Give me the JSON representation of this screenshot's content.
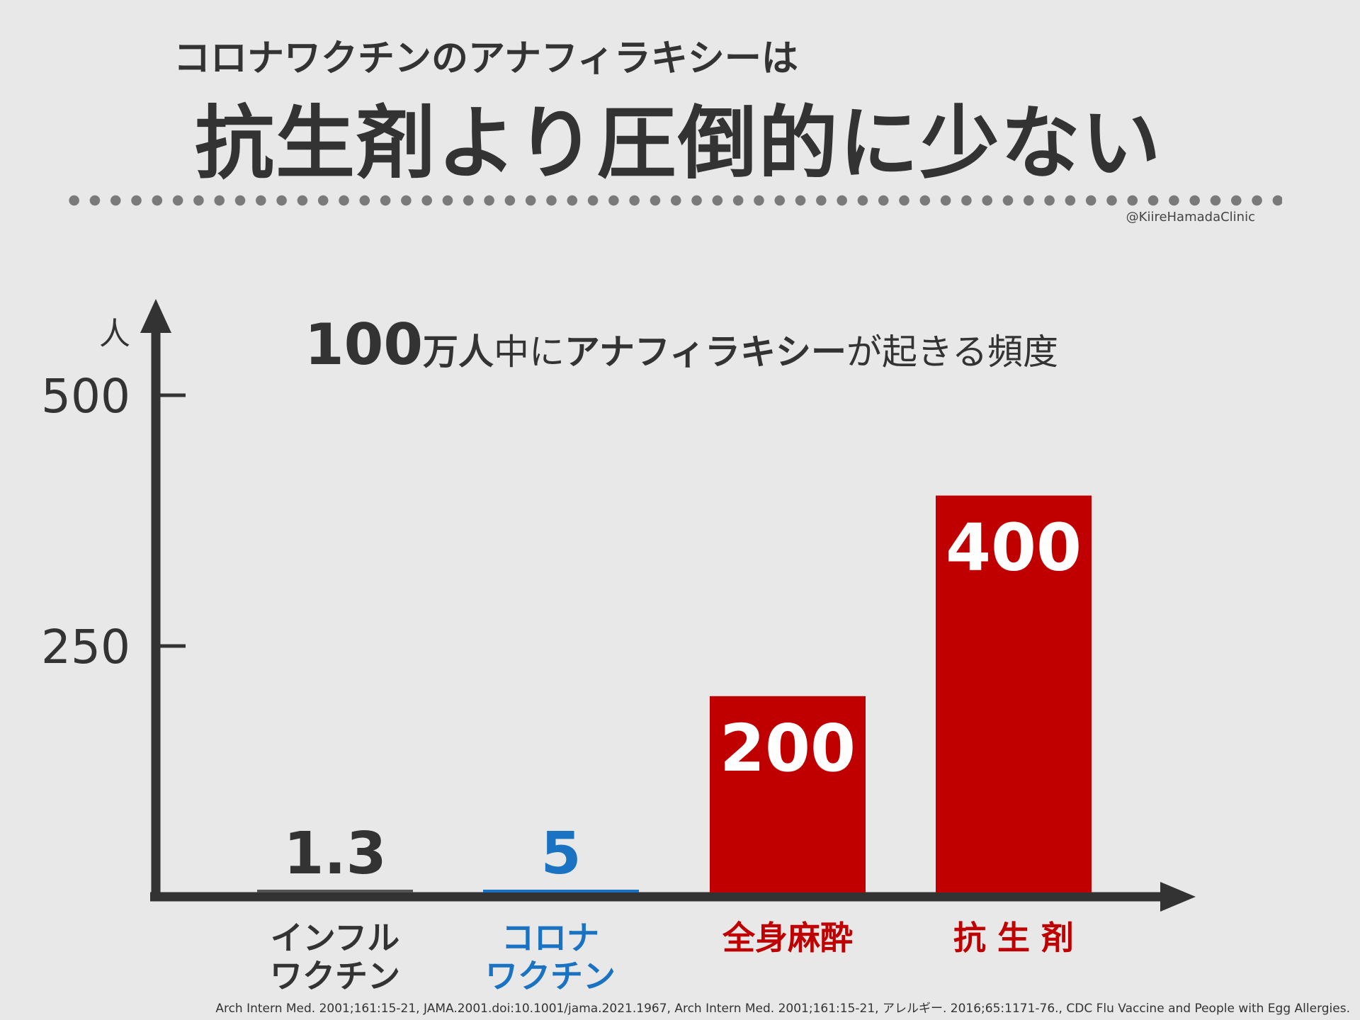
{
  "header": {
    "subtitle": "コロナワクチンのアナフィラキシーは",
    "title": "抗生剤より圧倒的に少ない",
    "handle": "@KiireHamadaClinic"
  },
  "chart_heading": {
    "number": "100",
    "part1": "万人",
    "part2": "中に",
    "part3": "アナフィラキシー",
    "part4": "が起きる頻度"
  },
  "chart_data": {
    "type": "bar",
    "ylabel": "人",
    "ylim": [
      0,
      500
    ],
    "yticks": [
      "500",
      "250"
    ],
    "y_tick_values": [
      500,
      250
    ],
    "categories": [
      "インフル\nワクチン",
      "コロナ\nワクチン",
      "全身麻酔",
      "抗 生 剤"
    ],
    "values": [
      1.3,
      5,
      200,
      400
    ],
    "value_labels": [
      "1.3",
      "5",
      "200",
      "400"
    ],
    "colors": [
      "#555555",
      "#1a73c2",
      "#c00000",
      "#c00000"
    ],
    "value_label_colors": [
      "#333333",
      "#1a73c2",
      "#ffffff",
      "#ffffff"
    ],
    "category_colors": [
      "#333333",
      "#1a73c2",
      "#c00000",
      "#c00000"
    ],
    "axis_color": "#333333"
  },
  "sources": "Arch Intern Med. 2001;161:15-21, JAMA.2001.doi:10.1001/jama.2021.1967, Arch Intern Med. 2001;161:15-21, アレルギー. 2016;65:1171-76., CDC Flu Vaccine and People with Egg Allergies."
}
